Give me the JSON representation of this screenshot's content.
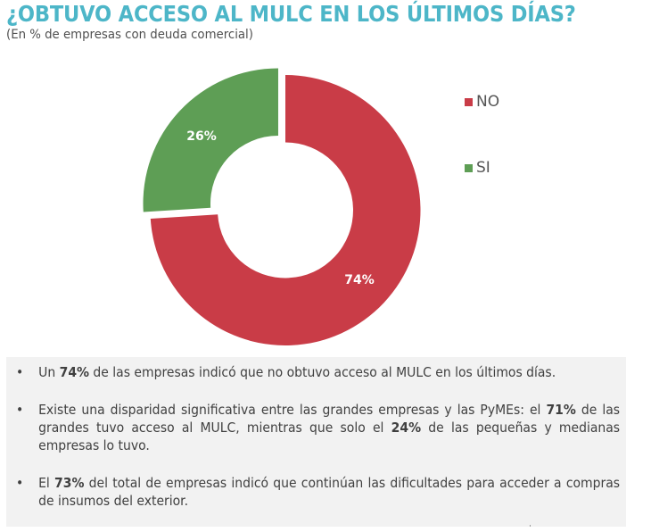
{
  "header": {
    "title": "¿OBTUVO ACCESO AL MULC EN LOS ÚLTIMOS DÍAS?",
    "subtitle": "(En % de empresas con deuda comercial)"
  },
  "chart_data": {
    "type": "pie",
    "style": "donut",
    "title": "¿OBTUVO ACCESO AL MULC EN LOS ÚLTIMOS DÍAS?",
    "subtitle": "(En % de empresas con deuda comercial)",
    "categories": [
      "NO",
      "SI"
    ],
    "values": [
      74,
      26
    ],
    "labels": [
      "74%",
      "26%"
    ],
    "colors": [
      "#C93C47",
      "#5E9E55"
    ],
    "exploded": [
      "SI"
    ],
    "legend_position": "right"
  },
  "legend": [
    {
      "label": "NO",
      "color": "#C93C47"
    },
    {
      "label": "SI",
      "color": "#5E9E55"
    }
  ],
  "bullets": [
    {
      "bullet": "•",
      "parts": [
        {
          "text": "Un ",
          "bold": false
        },
        {
          "text": "74%",
          "bold": true
        },
        {
          "text": " de las empresas indicó que no obtuvo acceso al MULC en los últimos días.",
          "bold": false
        }
      ]
    },
    {
      "bullet": "•",
      "parts": [
        {
          "text": "Existe una disparidad significativa entre las grandes empresas y las PyMEs: el ",
          "bold": false
        },
        {
          "text": "71%",
          "bold": true
        },
        {
          "text": " de las grandes tuvo acceso al MULC, mientras que solo el ",
          "bold": false
        },
        {
          "text": "24%",
          "bold": true
        },
        {
          "text": " de las pequeñas y medianas empresas lo tuvo.",
          "bold": false
        }
      ]
    },
    {
      "bullet": "•",
      "parts": [
        {
          "text": "El ",
          "bold": false
        },
        {
          "text": "73%",
          "bold": true
        },
        {
          "text": " del total de empresas indicó que continúan las dificultades para acceder a compras de insumos del exterior.",
          "bold": false
        }
      ]
    }
  ]
}
